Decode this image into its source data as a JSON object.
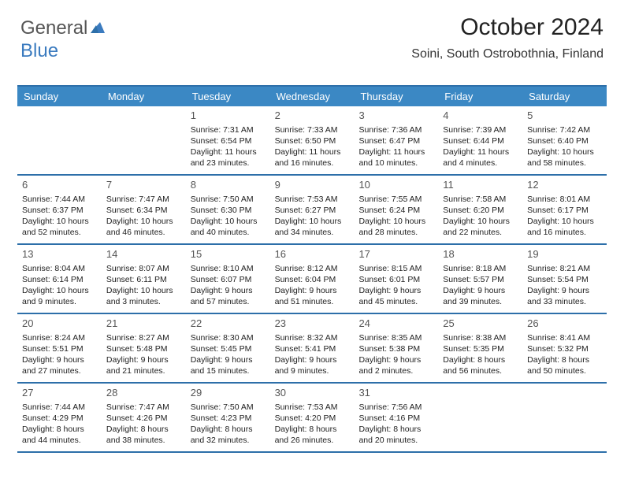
{
  "brand": {
    "part1": "General",
    "part2": "Blue"
  },
  "header": {
    "month_title": "October 2024",
    "location": "Soini, South Ostrobothnia, Finland"
  },
  "colors": {
    "header_bg": "#3b88c4",
    "header_border": "#2d6fa9",
    "text": "#222222",
    "logo_gray": "#555555",
    "logo_blue": "#3b7bbf"
  },
  "typography": {
    "title_fontsize": 30,
    "location_fontsize": 16,
    "dayheader_fontsize": 13,
    "daynum_fontsize": 13,
    "cell_fontsize": 10.5
  },
  "days_of_week": [
    "Sunday",
    "Monday",
    "Tuesday",
    "Wednesday",
    "Thursday",
    "Friday",
    "Saturday"
  ],
  "weeks": [
    [
      null,
      null,
      {
        "n": "1",
        "sunrise": "Sunrise: 7:31 AM",
        "sunset": "Sunset: 6:54 PM",
        "daylight": "Daylight: 11 hours and 23 minutes."
      },
      {
        "n": "2",
        "sunrise": "Sunrise: 7:33 AM",
        "sunset": "Sunset: 6:50 PM",
        "daylight": "Daylight: 11 hours and 16 minutes."
      },
      {
        "n": "3",
        "sunrise": "Sunrise: 7:36 AM",
        "sunset": "Sunset: 6:47 PM",
        "daylight": "Daylight: 11 hours and 10 minutes."
      },
      {
        "n": "4",
        "sunrise": "Sunrise: 7:39 AM",
        "sunset": "Sunset: 6:44 PM",
        "daylight": "Daylight: 11 hours and 4 minutes."
      },
      {
        "n": "5",
        "sunrise": "Sunrise: 7:42 AM",
        "sunset": "Sunset: 6:40 PM",
        "daylight": "Daylight: 10 hours and 58 minutes."
      }
    ],
    [
      {
        "n": "6",
        "sunrise": "Sunrise: 7:44 AM",
        "sunset": "Sunset: 6:37 PM",
        "daylight": "Daylight: 10 hours and 52 minutes."
      },
      {
        "n": "7",
        "sunrise": "Sunrise: 7:47 AM",
        "sunset": "Sunset: 6:34 PM",
        "daylight": "Daylight: 10 hours and 46 minutes."
      },
      {
        "n": "8",
        "sunrise": "Sunrise: 7:50 AM",
        "sunset": "Sunset: 6:30 PM",
        "daylight": "Daylight: 10 hours and 40 minutes."
      },
      {
        "n": "9",
        "sunrise": "Sunrise: 7:53 AM",
        "sunset": "Sunset: 6:27 PM",
        "daylight": "Daylight: 10 hours and 34 minutes."
      },
      {
        "n": "10",
        "sunrise": "Sunrise: 7:55 AM",
        "sunset": "Sunset: 6:24 PM",
        "daylight": "Daylight: 10 hours and 28 minutes."
      },
      {
        "n": "11",
        "sunrise": "Sunrise: 7:58 AM",
        "sunset": "Sunset: 6:20 PM",
        "daylight": "Daylight: 10 hours and 22 minutes."
      },
      {
        "n": "12",
        "sunrise": "Sunrise: 8:01 AM",
        "sunset": "Sunset: 6:17 PM",
        "daylight": "Daylight: 10 hours and 16 minutes."
      }
    ],
    [
      {
        "n": "13",
        "sunrise": "Sunrise: 8:04 AM",
        "sunset": "Sunset: 6:14 PM",
        "daylight": "Daylight: 10 hours and 9 minutes."
      },
      {
        "n": "14",
        "sunrise": "Sunrise: 8:07 AM",
        "sunset": "Sunset: 6:11 PM",
        "daylight": "Daylight: 10 hours and 3 minutes."
      },
      {
        "n": "15",
        "sunrise": "Sunrise: 8:10 AM",
        "sunset": "Sunset: 6:07 PM",
        "daylight": "Daylight: 9 hours and 57 minutes."
      },
      {
        "n": "16",
        "sunrise": "Sunrise: 8:12 AM",
        "sunset": "Sunset: 6:04 PM",
        "daylight": "Daylight: 9 hours and 51 minutes."
      },
      {
        "n": "17",
        "sunrise": "Sunrise: 8:15 AM",
        "sunset": "Sunset: 6:01 PM",
        "daylight": "Daylight: 9 hours and 45 minutes."
      },
      {
        "n": "18",
        "sunrise": "Sunrise: 8:18 AM",
        "sunset": "Sunset: 5:57 PM",
        "daylight": "Daylight: 9 hours and 39 minutes."
      },
      {
        "n": "19",
        "sunrise": "Sunrise: 8:21 AM",
        "sunset": "Sunset: 5:54 PM",
        "daylight": "Daylight: 9 hours and 33 minutes."
      }
    ],
    [
      {
        "n": "20",
        "sunrise": "Sunrise: 8:24 AM",
        "sunset": "Sunset: 5:51 PM",
        "daylight": "Daylight: 9 hours and 27 minutes."
      },
      {
        "n": "21",
        "sunrise": "Sunrise: 8:27 AM",
        "sunset": "Sunset: 5:48 PM",
        "daylight": "Daylight: 9 hours and 21 minutes."
      },
      {
        "n": "22",
        "sunrise": "Sunrise: 8:30 AM",
        "sunset": "Sunset: 5:45 PM",
        "daylight": "Daylight: 9 hours and 15 minutes."
      },
      {
        "n": "23",
        "sunrise": "Sunrise: 8:32 AM",
        "sunset": "Sunset: 5:41 PM",
        "daylight": "Daylight: 9 hours and 9 minutes."
      },
      {
        "n": "24",
        "sunrise": "Sunrise: 8:35 AM",
        "sunset": "Sunset: 5:38 PM",
        "daylight": "Daylight: 9 hours and 2 minutes."
      },
      {
        "n": "25",
        "sunrise": "Sunrise: 8:38 AM",
        "sunset": "Sunset: 5:35 PM",
        "daylight": "Daylight: 8 hours and 56 minutes."
      },
      {
        "n": "26",
        "sunrise": "Sunrise: 8:41 AM",
        "sunset": "Sunset: 5:32 PM",
        "daylight": "Daylight: 8 hours and 50 minutes."
      }
    ],
    [
      {
        "n": "27",
        "sunrise": "Sunrise: 7:44 AM",
        "sunset": "Sunset: 4:29 PM",
        "daylight": "Daylight: 8 hours and 44 minutes."
      },
      {
        "n": "28",
        "sunrise": "Sunrise: 7:47 AM",
        "sunset": "Sunset: 4:26 PM",
        "daylight": "Daylight: 8 hours and 38 minutes."
      },
      {
        "n": "29",
        "sunrise": "Sunrise: 7:50 AM",
        "sunset": "Sunset: 4:23 PM",
        "daylight": "Daylight: 8 hours and 32 minutes."
      },
      {
        "n": "30",
        "sunrise": "Sunrise: 7:53 AM",
        "sunset": "Sunset: 4:20 PM",
        "daylight": "Daylight: 8 hours and 26 minutes."
      },
      {
        "n": "31",
        "sunrise": "Sunrise: 7:56 AM",
        "sunset": "Sunset: 4:16 PM",
        "daylight": "Daylight: 8 hours and 20 minutes."
      },
      null,
      null
    ]
  ]
}
